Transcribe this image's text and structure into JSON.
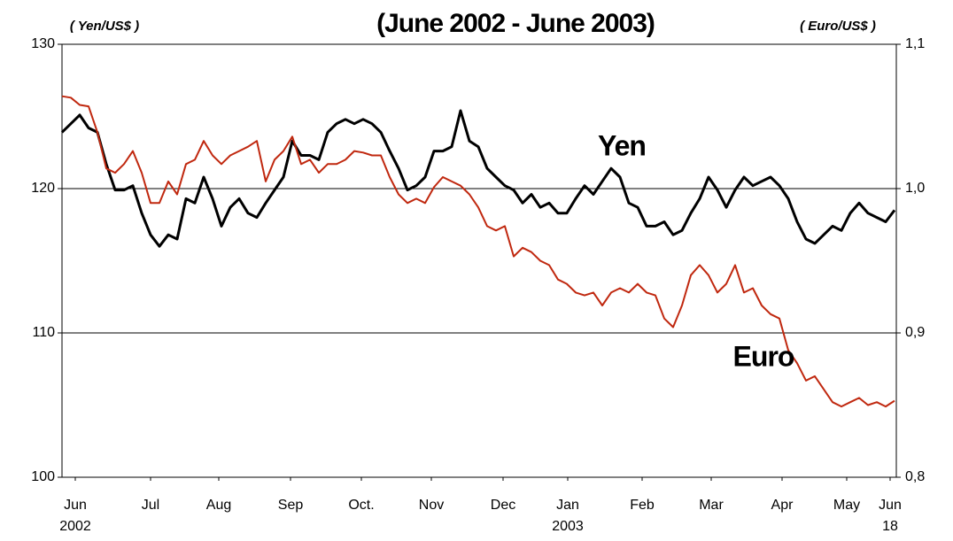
{
  "chart_data": {
    "type": "line",
    "title": "(June 2002 - June 2003)",
    "y_axis_label": "( Yen/US$ )",
    "y2_axis_label": "( Euro/US$ )",
    "x": [
      0,
      1,
      2,
      3,
      4,
      5,
      6,
      7,
      8,
      9,
      10,
      11,
      12,
      13,
      14,
      15,
      16,
      17,
      18,
      19,
      20,
      21,
      22,
      23,
      24,
      25,
      26,
      27,
      28,
      29,
      30,
      31,
      32,
      33,
      34,
      35,
      36,
      37,
      38,
      39,
      40,
      41,
      42,
      43,
      44,
      45,
      46,
      47,
      48,
      49,
      50,
      51,
      52,
      53,
      54,
      55,
      56,
      57,
      58,
      59,
      60,
      61,
      62,
      63,
      64,
      65,
      66,
      67,
      68,
      69,
      70,
      71,
      72,
      73,
      74,
      75,
      76,
      77,
      78,
      79,
      80,
      81,
      82,
      83,
      84,
      85,
      86,
      87,
      88,
      89,
      90,
      91,
      92,
      93,
      94
    ],
    "xlim": [
      0,
      94.2
    ],
    "xticks": [
      {
        "value": 1.5,
        "label": "Jun",
        "label2": "2002"
      },
      {
        "value": 10,
        "label": "Jul"
      },
      {
        "value": 17.7,
        "label": "Aug"
      },
      {
        "value": 25.8,
        "label": "Sep"
      },
      {
        "value": 33.8,
        "label": "Oct."
      },
      {
        "value": 41.7,
        "label": "Nov"
      },
      {
        "value": 49.8,
        "label": "Dec"
      },
      {
        "value": 57.1,
        "label": "Jan",
        "label2": "2003"
      },
      {
        "value": 65.5,
        "label": "Feb"
      },
      {
        "value": 73.3,
        "label": "Mar"
      },
      {
        "value": 81.3,
        "label": "Apr"
      },
      {
        "value": 88.6,
        "label": "May"
      },
      {
        "value": 93.5,
        "label": "Jun",
        "label2": "18"
      }
    ],
    "ylim": [
      100,
      130
    ],
    "yticks": [
      100,
      110,
      120,
      130
    ],
    "y2lim": [
      0.8,
      1.1
    ],
    "y2ticks": [
      {
        "value": 0.8,
        "label": "0,8"
      },
      {
        "value": 0.9,
        "label": "0,9"
      },
      {
        "value": 1.0,
        "label": "1,0"
      },
      {
        "value": 1.1,
        "label": "1,1"
      }
    ],
    "grid": true,
    "series": [
      {
        "name": "Yen",
        "color": "#000000",
        "axis": "y",
        "values": [
          123.9,
          124.5,
          125.1,
          124.2,
          123.9,
          121.7,
          119.9,
          119.9,
          120.2,
          118.3,
          116.8,
          116.0,
          116.8,
          116.5,
          119.3,
          119.0,
          120.8,
          119.3,
          117.4,
          118.7,
          119.3,
          118.3,
          118.0,
          119.0,
          119.9,
          120.8,
          123.3,
          122.3,
          122.3,
          122.0,
          123.9,
          124.5,
          124.8,
          124.5,
          124.8,
          124.5,
          123.9,
          122.6,
          121.4,
          119.9,
          120.2,
          120.8,
          122.6,
          122.6,
          122.9,
          125.4,
          123.3,
          122.9,
          121.4,
          120.8,
          120.2,
          119.9,
          119.0,
          119.6,
          118.7,
          119.0,
          118.3,
          118.3,
          119.3,
          120.2,
          119.6,
          120.5,
          121.4,
          120.8,
          119.0,
          118.7,
          117.4,
          117.4,
          117.7,
          116.8,
          117.1,
          118.3,
          119.3,
          120.8,
          119.9,
          118.7,
          119.9,
          120.8,
          120.2,
          120.5,
          120.8,
          120.2,
          119.3,
          117.7,
          116.5,
          116.2,
          116.8,
          117.4,
          117.1,
          118.3,
          119.0,
          118.3,
          118.0,
          117.7,
          118.5
        ]
      },
      {
        "name": "Euro",
        "color": "#c0280f",
        "axis": "y2",
        "values": [
          1.064,
          1.063,
          1.058,
          1.057,
          1.039,
          1.014,
          1.011,
          1.017,
          1.026,
          1.011,
          0.99,
          0.99,
          1.005,
          0.996,
          1.017,
          1.02,
          1.033,
          1.023,
          1.017,
          1.023,
          1.026,
          1.029,
          1.033,
          1.005,
          1.02,
          1.026,
          1.036,
          1.017,
          1.02,
          1.011,
          1.017,
          1.017,
          1.02,
          1.026,
          1.025,
          1.023,
          1.023,
          1.008,
          0.996,
          0.99,
          0.993,
          0.99,
          1.001,
          1.008,
          1.005,
          1.002,
          0.996,
          0.987,
          0.974,
          0.971,
          0.974,
          0.953,
          0.959,
          0.956,
          0.95,
          0.947,
          0.937,
          0.934,
          0.928,
          0.926,
          0.928,
          0.919,
          0.928,
          0.931,
          0.928,
          0.934,
          0.928,
          0.926,
          0.91,
          0.904,
          0.919,
          0.94,
          0.947,
          0.94,
          0.928,
          0.934,
          0.947,
          0.928,
          0.931,
          0.919,
          0.913,
          0.91,
          0.888,
          0.879,
          0.867,
          0.87,
          0.861,
          0.852,
          0.849,
          0.852,
          0.855,
          0.85,
          0.852,
          0.849,
          0.853
        ]
      }
    ]
  }
}
